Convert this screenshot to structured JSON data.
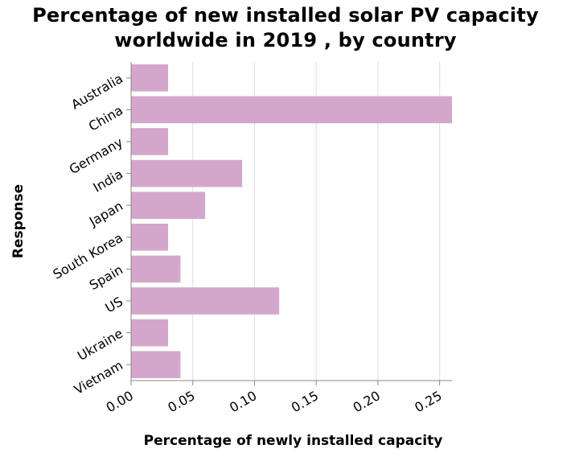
{
  "chart_data": {
    "type": "bar",
    "orientation": "horizontal",
    "title_line1": "Percentage of new installed solar PV capacity",
    "title_line2": "worldwide in 2019 , by country",
    "xlabel": "Percentage of newly installed capacity",
    "ylabel": "Response",
    "categories": [
      "Australia",
      "China",
      "Germany",
      "India",
      "Japan",
      "South Korea",
      "Spain",
      "US",
      "Ukraine",
      "Vietnam"
    ],
    "values": [
      0.03,
      0.26,
      0.03,
      0.09,
      0.06,
      0.03,
      0.04,
      0.12,
      0.03,
      0.04
    ],
    "xlim": [
      0,
      0.26
    ],
    "xticks": [
      "0.00",
      "0.05",
      "0.10",
      "0.15",
      "0.20",
      "0.25"
    ],
    "xtick_values": [
      0,
      0.05,
      0.1,
      0.15,
      0.2,
      0.25
    ],
    "bar_color": "#d5a6cb",
    "grid": true
  }
}
